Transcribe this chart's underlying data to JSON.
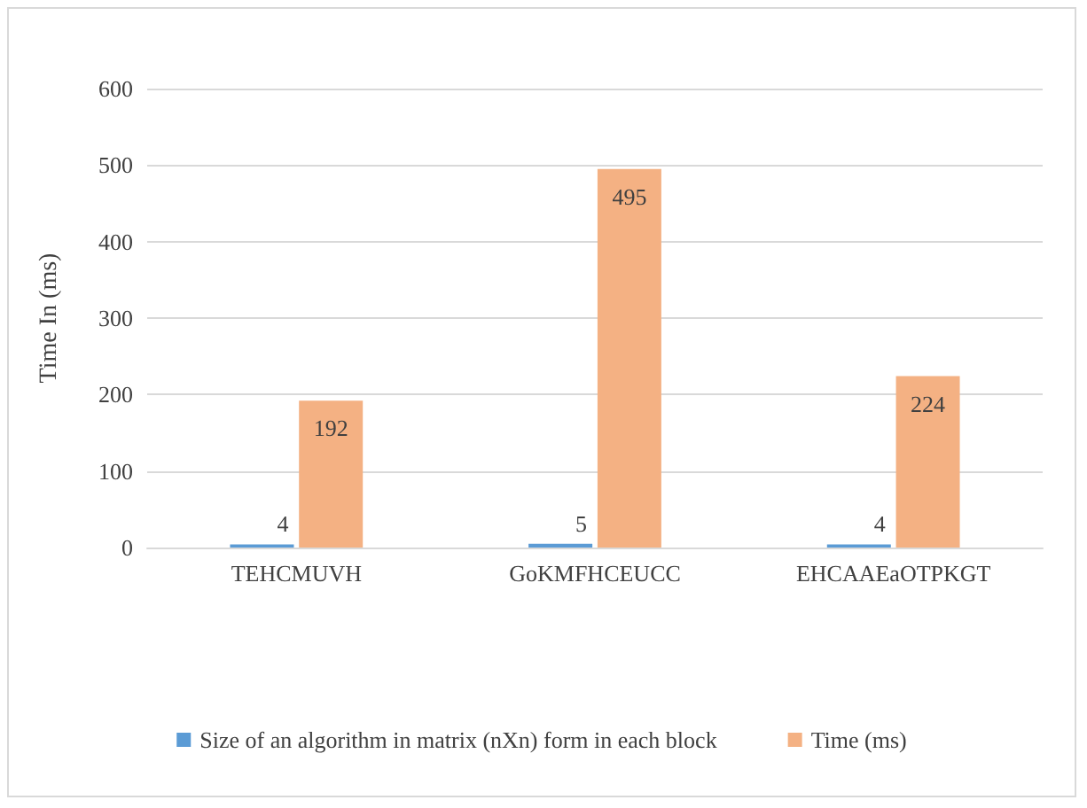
{
  "chart_data": {
    "type": "bar",
    "ylabel": "Time In (ms)",
    "categories": [
      "TEHCMUVH",
      "GoKMFHCEUCC",
      "EHCAAEaOTPKGT"
    ],
    "series": [
      {
        "name": "Size of an algorithm in matrix (nXn) form in each block",
        "color": "#5b9bd5",
        "values": [
          4,
          5,
          4
        ]
      },
      {
        "name": "Time (ms)",
        "color": "#f4b183",
        "values": [
          192,
          495,
          224
        ]
      }
    ],
    "ylim": [
      0,
      600
    ],
    "yticks": [
      0,
      100,
      200,
      300,
      400,
      500,
      600
    ],
    "grid": "y",
    "legend": "bottom",
    "data_labels": true
  }
}
